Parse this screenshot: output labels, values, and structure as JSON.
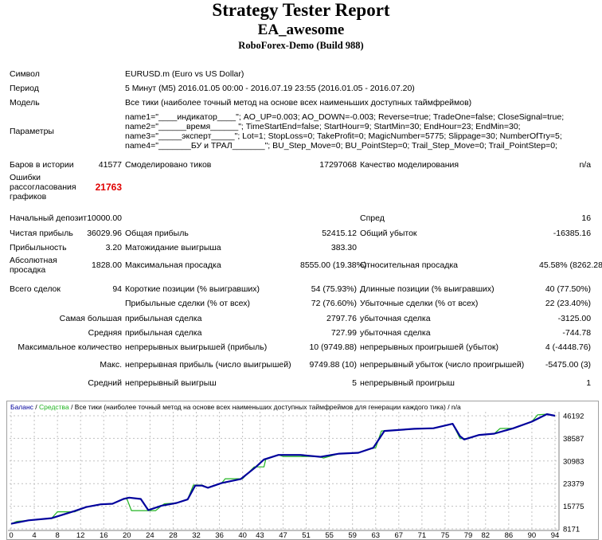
{
  "header": {
    "title": "Strategy Tester Report",
    "ea": "EA_awesome",
    "server": "RoboForex-Demo (Build 988)"
  },
  "info": {
    "symbol_label": "Символ",
    "symbol": "EURUSD.m (Euro vs US Dollar)",
    "period_label": "Период",
    "period": "5 Минут (M5) 2016.01.05 00:00 - 2016.07.19 23:55 (2016.01.05 - 2016.07.20)",
    "model_label": "Модель",
    "model": "Все тики (наиболее точный метод на основе всех наименьших доступных таймфреймов)",
    "params_label": "Параметры",
    "params": [
      "name1=\"____индикатор____\"; AO_UP=0.003; AO_DOWN=-0.003; Reverse=true; TradeOne=false; CloseSignal=true;",
      "name2=\"______время______\"; TimeStartEnd=false; StartHour=9; StartMin=30; EndHour=23; EndMin=30;",
      "name3=\"_____эксперт_____\"; Lot=1; StopLoss=0; TakeProfit=0; MagicNumber=5775; Slippage=30; NumberOfTry=5;",
      "name4=\"_______БУ и ТРАЛ_______\"; BU_Step_Move=0; BU_PointStep=0; Trail_Step_Move=0; Trail_PointStep=0;"
    ],
    "bars_label": "Баров в истории",
    "bars": "41577",
    "ticks_label": "Смоделировано тиков",
    "ticks": "17297068",
    "quality_label": "Качество моделирования",
    "quality": "n/a",
    "errors_label": "Ошибки рассогласования графиков",
    "errors": "21763"
  },
  "stats": {
    "deposit_label": "Начальный депозит",
    "deposit": "10000.00",
    "spread_label": "Спред",
    "spread": "16",
    "net_label": "Чистая прибыль",
    "net": "36029.96",
    "gross_profit_label": "Общая прибыль",
    "gross_profit": "52415.12",
    "gross_loss_label": "Общий убыток",
    "gross_loss": "-16385.16",
    "pf_label": "Прибыльность",
    "pf": "3.20",
    "expect_label": "Матожидание выигрыша",
    "expect": "383.30",
    "abs_dd_label": "Абсолютная просадка",
    "abs_dd": "1828.00",
    "max_dd_label": "Максимальная просадка",
    "max_dd": "8555.00 (19.38%)",
    "rel_dd_label": "Относительная просадка",
    "rel_dd": "45.58% (8262.28)",
    "total_label": "Всего сделок",
    "total": "94",
    "short_label": "Короткие позиции (% выигравших)",
    "short": "54 (75.93%)",
    "long_label": "Длинные позиции (% выигравших)",
    "long": "40 (77.50%)",
    "profit_trades_label": "Прибыльные сделки (% от всех)",
    "profit_trades": "72 (76.60%)",
    "loss_trades_label": "Убыточные сделки (% от всех)",
    "loss_trades": "22 (23.40%)",
    "largest_label": "Самая большая",
    "largest_profit_label": "прибыльная сделка",
    "largest_profit": "2797.76",
    "largest_loss_label": "убыточная сделка",
    "largest_loss": "-3125.00",
    "avg_label": "Средняя",
    "avg_profit_label": "прибыльная сделка",
    "avg_profit": "727.99",
    "avg_loss_label": "убыточная сделка",
    "avg_loss": "-744.78",
    "maxcount_label": "Максимальное количество",
    "maxcons_wins_label": "непрерывных выигрышей (прибыль)",
    "maxcons_wins": "10 (9749.88)",
    "maxcons_losses_label": "непрерывных проигрышей (убыток)",
    "maxcons_losses": "4 (-4448.76)",
    "max_label": "Макс.",
    "max_profit_label": "непрерывная прибыль (число выигрышей)",
    "max_profit": "9749.88 (10)",
    "max_loss_label": "непрерывный убыток (число проигрышей)",
    "max_loss": "-5475.00 (3)",
    "mean_label": "Средний",
    "mean_wins_label": "непрерывный выигрыш",
    "mean_wins": "5",
    "mean_losses_label": "непрерывный проигрыш",
    "mean_losses": "1"
  },
  "chart_data": {
    "type": "line",
    "legend": {
      "balance": "Баланс",
      "sep1": " / ",
      "equity": "Средства",
      "rest": " / Все тики (наиболее точный метод на основе всех наименьших доступных таймфреймов для генерации каждого тика) / n/a"
    },
    "colors": {
      "balance": "#00009c",
      "equity": "#22b422",
      "grid": "#c0c0c0"
    },
    "ylim": [
      8171,
      46192
    ],
    "xlim": [
      0,
      94
    ],
    "yticks": [
      "46192",
      "38587",
      "30983",
      "23379",
      "15775",
      "8171"
    ],
    "xticks": [
      "0",
      "4",
      "8",
      "12",
      "16",
      "20",
      "24",
      "28",
      "32",
      "36",
      "40",
      "43",
      "47",
      "51",
      "55",
      "59",
      "63",
      "67",
      "71",
      "75",
      "79",
      "82",
      "86",
      "90",
      "94"
    ],
    "series": [
      {
        "name": "Баланс",
        "points": [
          [
            0,
            9875
          ],
          [
            3,
            11040
          ],
          [
            7,
            11760
          ],
          [
            11,
            14180
          ],
          [
            13,
            15520
          ],
          [
            15.5,
            16420
          ],
          [
            17.5,
            16600
          ],
          [
            19.4,
            18220
          ],
          [
            20.4,
            18660
          ],
          [
            22.4,
            18220
          ],
          [
            23.7,
            14450
          ],
          [
            26,
            15970
          ],
          [
            28.6,
            16870
          ],
          [
            30.5,
            18040
          ],
          [
            31.8,
            22700
          ],
          [
            33,
            22700
          ],
          [
            34,
            21980
          ],
          [
            36.4,
            23590
          ],
          [
            39.7,
            24940
          ],
          [
            42.3,
            28970
          ],
          [
            43.7,
            31480
          ],
          [
            46.2,
            33010
          ],
          [
            50,
            33010
          ],
          [
            53.5,
            32380
          ],
          [
            56.7,
            33460
          ],
          [
            60,
            33730
          ],
          [
            62.6,
            35430
          ],
          [
            64.5,
            41080
          ],
          [
            69.7,
            41800
          ],
          [
            73,
            41980
          ],
          [
            76.3,
            43500
          ],
          [
            77.6,
            39290
          ],
          [
            78.3,
            38210
          ],
          [
            80.9,
            39740
          ],
          [
            83.5,
            40180
          ],
          [
            86.8,
            41980
          ],
          [
            90,
            44220
          ],
          [
            92.6,
            46730
          ],
          [
            94,
            46190
          ]
        ]
      },
      {
        "name": "Средства",
        "points": [
          [
            0,
            9875
          ],
          [
            1,
            10700
          ],
          [
            3,
            11040
          ],
          [
            7,
            11760
          ],
          [
            8,
            13900
          ],
          [
            11,
            13900
          ],
          [
            13,
            15520
          ],
          [
            15.5,
            16420
          ],
          [
            17.5,
            16600
          ],
          [
            19.4,
            18220
          ],
          [
            20,
            18300
          ],
          [
            20.8,
            14300
          ],
          [
            25,
            14300
          ],
          [
            26,
            15970
          ],
          [
            26.5,
            16600
          ],
          [
            28.6,
            16870
          ],
          [
            30.5,
            18040
          ],
          [
            31.5,
            22900
          ],
          [
            33,
            22900
          ],
          [
            34,
            21980
          ],
          [
            36.4,
            23590
          ],
          [
            37,
            25000
          ],
          [
            40,
            25000
          ],
          [
            42,
            29000
          ],
          [
            43.7,
            29000
          ],
          [
            44,
            31480
          ],
          [
            46.2,
            33010
          ],
          [
            47,
            32500
          ],
          [
            53,
            32500
          ],
          [
            54,
            32000
          ],
          [
            56.7,
            33460
          ],
          [
            60,
            33730
          ],
          [
            62,
            35000
          ],
          [
            63,
            35430
          ],
          [
            64,
            41080
          ],
          [
            69.7,
            41800
          ],
          [
            73,
            41980
          ],
          [
            76.3,
            43500
          ],
          [
            77.6,
            38500
          ],
          [
            79,
            38500
          ],
          [
            80.9,
            39740
          ],
          [
            83.5,
            40180
          ],
          [
            84.5,
            41900
          ],
          [
            86.8,
            41980
          ],
          [
            90,
            44220
          ],
          [
            91,
            46500
          ],
          [
            92.6,
            46730
          ],
          [
            94,
            46190
          ]
        ]
      }
    ]
  }
}
